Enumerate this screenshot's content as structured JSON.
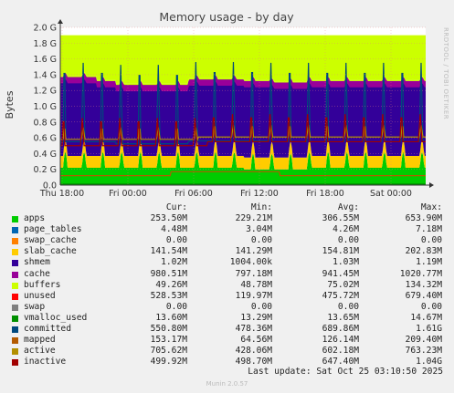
{
  "chart_data": {
    "type": "area",
    "title": "Memory usage - by day",
    "ylabel": "Bytes",
    "side_label": "RRDTOOL / TOBI OETIKER",
    "ylim": [
      0,
      2.0
    ],
    "y_unit": "G",
    "y_ticks": [
      "0.0",
      "0.2 G",
      "0.4 G",
      "0.6 G",
      "0.8 G",
      "1.0 G",
      "1.2 G",
      "1.4 G",
      "1.6 G",
      "1.8 G",
      "2.0 G"
    ],
    "x_ticks": [
      "Thu 18:00",
      "Fri 00:00",
      "Fri 06:00",
      "Fri 12:00",
      "Fri 18:00",
      "Sat 00:00"
    ],
    "columns": [
      "Cur:",
      "Min:",
      "Avg:",
      "Max:"
    ],
    "series": [
      {
        "name": "apps",
        "color": "#00cc00",
        "cur": "253.50M",
        "min": "229.21M",
        "avg": "306.55M",
        "max": "653.90M"
      },
      {
        "name": "page_tables",
        "color": "#0066b3",
        "cur": "4.48M",
        "min": "3.04M",
        "avg": "4.26M",
        "max": "7.18M"
      },
      {
        "name": "swap_cache",
        "color": "#ff8000",
        "cur": "0.00",
        "min": "0.00",
        "avg": "0.00",
        "max": "0.00"
      },
      {
        "name": "slab_cache",
        "color": "#ffcc00",
        "cur": "141.54M",
        "min": "141.29M",
        "avg": "154.81M",
        "max": "202.83M"
      },
      {
        "name": "shmem",
        "color": "#330099",
        "cur": "1.02M",
        "min": "1004.00k",
        "avg": "1.03M",
        "max": "1.19M"
      },
      {
        "name": "cache",
        "color": "#990099",
        "cur": "980.51M",
        "min": "797.18M",
        "avg": "941.45M",
        "max": "1020.77M"
      },
      {
        "name": "buffers",
        "color": "#ccff00",
        "cur": "49.26M",
        "min": "48.78M",
        "avg": "75.02M",
        "max": "134.32M"
      },
      {
        "name": "unused",
        "color": "#ff0000",
        "cur": "528.53M",
        "min": "119.97M",
        "avg": "475.72M",
        "max": "679.40M"
      },
      {
        "name": "swap",
        "color": "#808080",
        "cur": "0.00",
        "min": "0.00",
        "avg": "0.00",
        "max": "0.00"
      },
      {
        "name": "vmalloc_used",
        "color": "#008f00",
        "cur": "13.60M",
        "min": "13.29M",
        "avg": "13.65M",
        "max": "14.67M"
      },
      {
        "name": "committed",
        "color": "#00487d",
        "cur": "550.80M",
        "min": "478.36M",
        "avg": "689.86M",
        "max": "1.61G"
      },
      {
        "name": "mapped",
        "color": "#b35a00",
        "cur": "153.17M",
        "min": "64.56M",
        "avg": "126.14M",
        "max": "209.40M"
      },
      {
        "name": "active",
        "color": "#b38f00",
        "cur": "705.62M",
        "min": "428.06M",
        "avg": "602.18M",
        "max": "763.23M"
      },
      {
        "name": "inactive",
        "color": "#a10000",
        "cur": "499.92M",
        "min": "498.70M",
        "avg": "647.40M",
        "max": "1.04G"
      }
    ],
    "approx_levels": {
      "apps": 0.25,
      "slab_cache": 0.15,
      "cache": 0.95,
      "buffers": 0.07,
      "unused": 0.5,
      "committed": 0.55,
      "mapped": 0.15,
      "active": 0.6,
      "inactive": 0.5,
      "total": 1.9
    },
    "last_update": "Last update: Sat Oct 25 03:10:50 2025",
    "footer": "Munin 2.0.57"
  }
}
